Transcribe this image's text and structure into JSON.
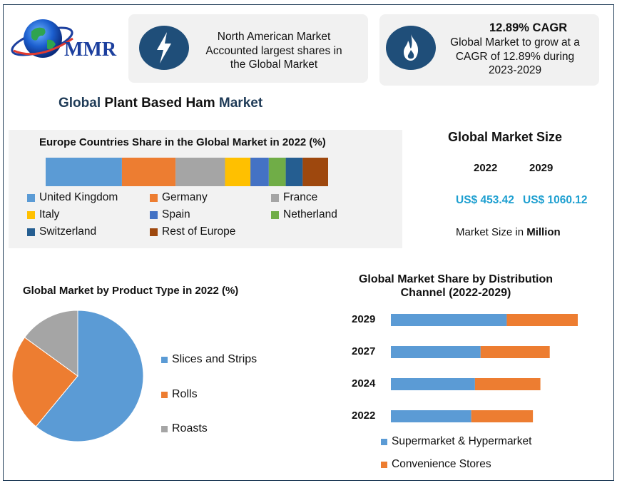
{
  "logo": {
    "text": "MMR"
  },
  "info_cards": [
    {
      "icon": "lightning-bolt-icon",
      "lines": [
        "North American Market",
        "Accounted largest shares in",
        "the Global Market"
      ]
    },
    {
      "icon": "flame-icon",
      "title": "12.89% CAGR",
      "lines": [
        "Global Market to grow at a",
        "CAGR of 12.89% during",
        "2023-2029"
      ]
    }
  ],
  "main_title": {
    "part1": "Global",
    "part2": " Plant Based Ham ",
    "part3": "Market"
  },
  "market_size": {
    "title": "Global Market Size",
    "years": [
      "2022",
      "2029"
    ],
    "values": [
      "US$ 453.42",
      "US$ 1060.12"
    ],
    "unit_prefix": "Market Size in ",
    "unit_bold": "Million"
  },
  "colors": {
    "blue": "#5b9bd5",
    "orange": "#ed7d31",
    "gray": "#a5a5a5",
    "yellow": "#ffc000",
    "royal": "#4472c4",
    "green": "#70ad47",
    "navy": "#255e91",
    "brown": "#9e480e",
    "dark": "#1f4e79",
    "accent": "#1d9fd0"
  },
  "chart_data": [
    {
      "type": "bar",
      "orientation": "horizontal-stacked-100",
      "title": "Europe Countries Share in the Global Market in 2022 (%)",
      "series": [
        {
          "name": "United Kingdom",
          "values": [
            27
          ]
        },
        {
          "name": "Germany",
          "values": [
            19
          ]
        },
        {
          "name": "France",
          "values": [
            17.5
          ]
        },
        {
          "name": "Italy",
          "values": [
            9
          ]
        },
        {
          "name": "Spain",
          "values": [
            6.5
          ]
        },
        {
          "name": "Netherland",
          "values": [
            6
          ]
        },
        {
          "name": "Switzerland",
          "values": [
            6
          ]
        },
        {
          "name": "Rest of Europe",
          "values": [
            9
          ]
        }
      ],
      "legend": "bottom"
    },
    {
      "type": "pie",
      "title": "Global Market by Product Type in 2022 (%)",
      "labels": [
        "Slices and Strips",
        "Rolls",
        "Roasts"
      ],
      "values": [
        61,
        24,
        15
      ],
      "legend": "right"
    },
    {
      "type": "bar",
      "orientation": "horizontal-stacked",
      "title": "Global Market Share by Distribution Channel (2022-2029)",
      "categories": [
        "2029",
        "2027",
        "2024",
        "2022"
      ],
      "series": [
        {
          "name": "Supermarket & Hypermarket",
          "values": [
            62,
            48,
            45,
            43
          ]
        },
        {
          "name": "Convenience Stores",
          "values": [
            38,
            37,
            35,
            33
          ]
        }
      ],
      "legend": "bottom"
    }
  ]
}
